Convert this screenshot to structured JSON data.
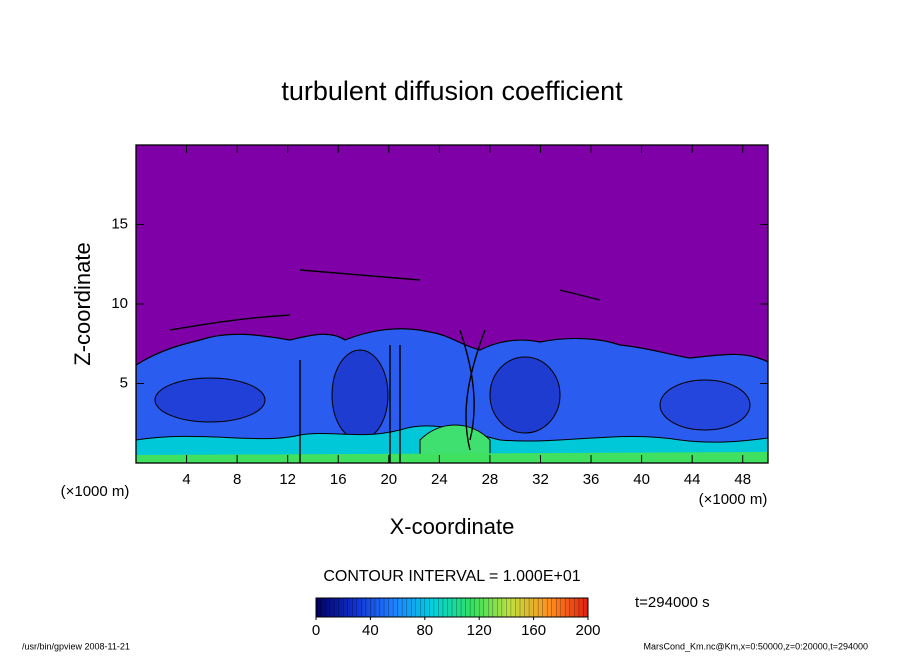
{
  "chart_data": {
    "type": "contour",
    "title": "turbulent diffusion coefficient",
    "x_label": "X-coordinate",
    "y_label": "Z-coordinate",
    "x_unit": "(×1000 m)",
    "xlim": [
      0,
      50
    ],
    "xticks": [
      4,
      8,
      12,
      16,
      20,
      24,
      28,
      32,
      36,
      40,
      44,
      48
    ],
    "ylim": [
      0,
      20
    ],
    "yticks": [
      5,
      10,
      15
    ],
    "background_color": "#8000a8",
    "colorbar": {
      "lim": [
        0,
        200
      ],
      "ticks": [
        0,
        40,
        80,
        120,
        160,
        200
      ],
      "colors": [
        "#000060",
        "#1030d0",
        "#2080ff",
        "#00d0e0",
        "#30e060",
        "#c0e040",
        "#ff9020",
        "#e02010"
      ]
    },
    "contour_interval": "CONTOUR INTERVAL = 1.000E+01",
    "time_label": "t=294000 s",
    "footer_left": "/usr/bin/gpview  2008-11-21",
    "footer_right": "MarsCond_Km.nc@Km,x=0:50000,z=0:20000,t=294000"
  }
}
